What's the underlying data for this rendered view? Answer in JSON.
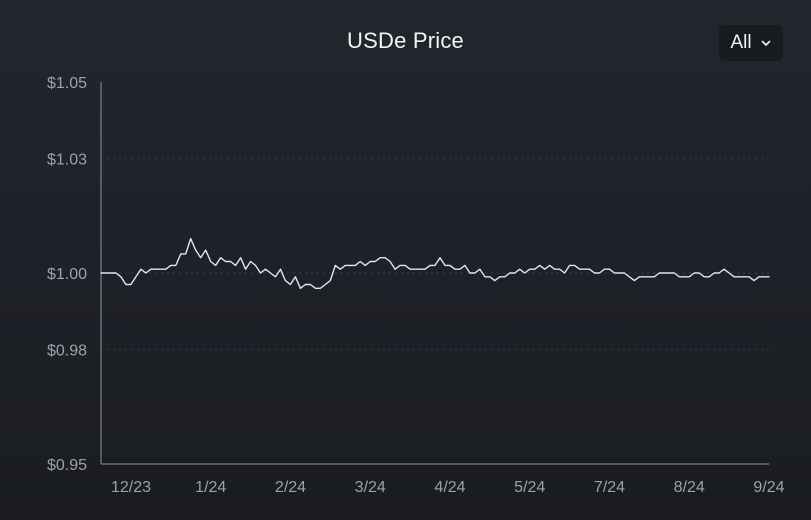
{
  "chart_data": {
    "type": "line",
    "title": "USDe Price",
    "xlabel": "",
    "ylabel": "",
    "ylim": [
      0.95,
      1.05
    ],
    "y_ticks": [
      {
        "value": 1.05,
        "label": "$1.05"
      },
      {
        "value": 1.03,
        "label": "$1.03"
      },
      {
        "value": 1.0,
        "label": "$1.00"
      },
      {
        "value": 0.98,
        "label": "$0.98"
      },
      {
        "value": 0.95,
        "label": "$0.95"
      }
    ],
    "x_ticks": [
      "12/23",
      "1/24",
      "2/24",
      "3/24",
      "4/24",
      "5/24",
      "7/24",
      "8/24",
      "9/24"
    ],
    "grid": true,
    "line_color": "#dfe6f5",
    "series": [
      {
        "values": [
          1.0,
          1.0,
          1.0,
          1.0,
          0.999,
          0.997,
          0.997,
          0.999,
          1.001,
          1.0,
          1.001,
          1.001,
          1.001,
          1.001,
          1.002,
          1.002,
          1.005,
          1.005,
          1.009,
          1.006,
          1.004,
          1.006,
          1.003,
          1.002,
          1.004,
          1.003,
          1.003,
          1.002,
          1.004,
          1.001,
          1.003,
          1.002,
          1.0,
          1.001,
          1.0,
          0.999,
          1.001,
          0.998,
          0.997,
          0.999,
          0.996,
          0.997,
          0.997,
          0.996,
          0.996,
          0.997,
          0.998,
          1.002,
          1.001,
          1.002,
          1.002,
          1.002,
          1.003,
          1.002,
          1.003,
          1.003,
          1.004,
          1.004,
          1.003,
          1.001,
          1.002,
          1.002,
          1.001,
          1.001,
          1.001,
          1.001,
          1.002,
          1.002,
          1.004,
          1.002,
          1.002,
          1.001,
          1.001,
          1.002,
          1.0,
          1.0,
          1.001,
          0.999,
          0.999,
          0.998,
          0.999,
          0.999,
          1.0,
          1.0,
          1.001,
          1.0,
          1.001,
          1.001,
          1.002,
          1.001,
          1.002,
          1.001,
          1.001,
          1.0,
          1.002,
          1.002,
          1.001,
          1.001,
          1.001,
          1.0,
          1.0,
          1.001,
          1.001,
          1.0,
          1.0,
          1.0,
          0.999,
          0.998,
          0.999,
          0.999,
          0.999,
          0.999,
          1.0,
          1.0,
          1.0,
          1.0,
          0.999,
          0.999,
          0.999,
          1.0,
          1.0,
          0.999,
          0.999,
          1.0,
          1.0,
          1.001,
          1.0,
          0.999,
          0.999,
          0.999,
          0.999,
          0.998,
          0.999,
          0.999,
          0.999
        ]
      }
    ]
  },
  "controls": {
    "range_label": "All"
  }
}
